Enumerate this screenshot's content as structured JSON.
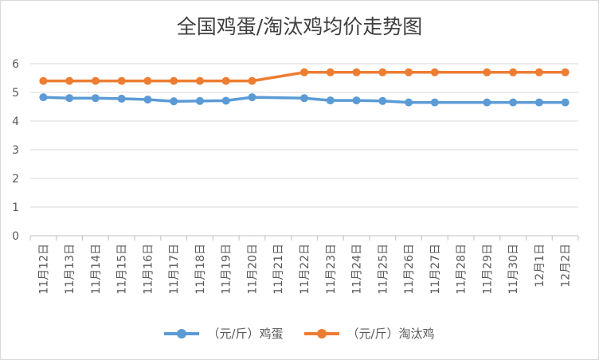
{
  "chart_data": {
    "type": "line",
    "title": "全国鸡蛋/淘汰鸡均价走势图",
    "categories": [
      "11月12日",
      "11月13日",
      "11月14日",
      "11月15日",
      "11月16日",
      "11月17日",
      "11月18日",
      "11月19日",
      "11月20日",
      "11月21日",
      "11月22日",
      "11月23日",
      "11月24日",
      "11月25日",
      "11月26日",
      "11月27日",
      "11月28日",
      "11月29日",
      "11月30日",
      "12月1日",
      "12月2日"
    ],
    "series": [
      {
        "name": "（元/斤）鸡蛋",
        "color": "#5b9bd5",
        "values": [
          4.83,
          4.8,
          4.8,
          4.78,
          4.75,
          4.69,
          4.7,
          4.71,
          4.83,
          null,
          4.8,
          4.72,
          4.72,
          4.7,
          4.65,
          4.65,
          null,
          4.65,
          4.65,
          4.65,
          4.65
        ]
      },
      {
        "name": "（元/斤）淘汰鸡",
        "color": "#ed7d31",
        "values": [
          5.4,
          5.4,
          5.4,
          5.4,
          5.4,
          5.4,
          5.4,
          5.4,
          5.4,
          null,
          5.7,
          5.7,
          5.7,
          5.7,
          5.7,
          5.7,
          null,
          5.7,
          5.7,
          5.7,
          5.7
        ]
      }
    ],
    "ylim": [
      0,
      6
    ],
    "yticks": [
      0,
      1,
      2,
      3,
      4,
      5,
      6
    ],
    "grid": true,
    "legend_position": "bottom"
  }
}
